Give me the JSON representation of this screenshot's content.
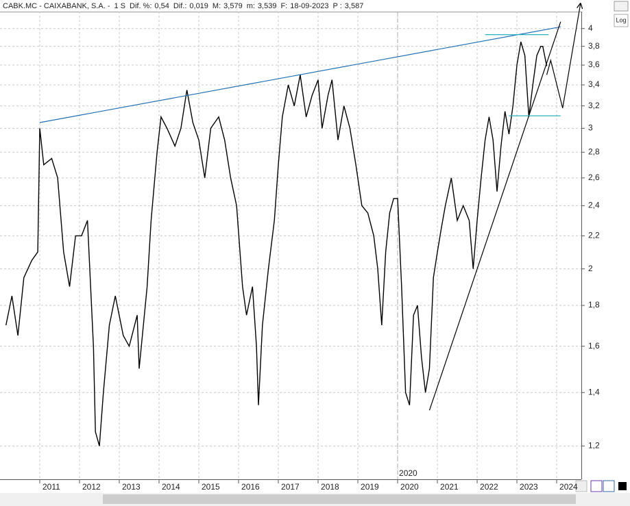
{
  "header": {
    "symbol": "CABK.MC - CAIXABANK, S.A. -",
    "period": "1 S",
    "fields": [
      {
        "label": "Dif. %:",
        "value": "0,54",
        "color": "#1a6fd0"
      },
      {
        "label": "Dif.:",
        "value": "0,019",
        "color": "#1a6fd0"
      },
      {
        "label": "M:",
        "value": "3,579",
        "color": "#222222"
      },
      {
        "label": "m:",
        "value": "3,539",
        "color": "#222222"
      },
      {
        "label": "F:",
        "value": "18-09-2023",
        "color": "#222222"
      },
      {
        "label": "P :",
        "value": "3,587",
        "color": "#e02020"
      }
    ]
  },
  "log_button": "Log",
  "chart_data": {
    "type": "line",
    "log": true,
    "grid": true,
    "xlim": [
      2010,
      2024.62
    ],
    "xticks": [
      2011,
      2012,
      2013,
      2014,
      2015,
      2016,
      2017,
      2018,
      2019,
      2020,
      2021,
      2022,
      2023,
      2024
    ],
    "ylim": [
      1.09,
      4.2
    ],
    "yticks": [
      {
        "value": 1.2,
        "label": "1,2"
      },
      {
        "value": 1.4,
        "label": "1,4"
      },
      {
        "value": 1.6,
        "label": "1,6"
      },
      {
        "value": 1.8,
        "label": "1,8"
      },
      2,
      {
        "value": 2.2,
        "label": "2,2"
      },
      {
        "value": 2.4,
        "label": "2,4"
      },
      {
        "value": 2.6,
        "label": "2,6"
      },
      {
        "value": 2.8,
        "label": "2,8"
      },
      3,
      {
        "value": 3.2,
        "label": "3,2"
      },
      {
        "value": 3.4,
        "label": "3,4"
      },
      {
        "value": 3.6,
        "label": "3,6"
      },
      {
        "value": 3.8,
        "label": "3,8"
      },
      4
    ],
    "marker": {
      "x": 2020,
      "label": "2020"
    },
    "series": [
      {
        "color": "#000000",
        "x": [
          2010.15,
          2010.3,
          2010.45,
          2010.6,
          2010.8,
          2010.95,
          2011.0,
          2011.1,
          2011.3,
          2011.45,
          2011.6,
          2011.75,
          2011.9,
          2012.05,
          2012.2,
          2012.35,
          2012.4,
          2012.5,
          2012.6,
          2012.75,
          2012.9,
          2013.1,
          2013.25,
          2013.45,
          2013.5,
          2013.7,
          2013.8,
          2013.95,
          2014.05,
          2014.2,
          2014.4,
          2014.55,
          2014.7,
          2014.85,
          2015.0,
          2015.15,
          2015.3,
          2015.5,
          2015.65,
          2015.8,
          2015.95,
          2016.1,
          2016.2,
          2016.35,
          2016.45,
          2016.5,
          2016.6,
          2016.75,
          2016.9,
          2017.0,
          2017.1,
          2017.25,
          2017.4,
          2017.55,
          2017.7,
          2017.85,
          2018.0,
          2018.1,
          2018.25,
          2018.35,
          2018.5,
          2018.65,
          2018.8,
          2018.95,
          2019.1,
          2019.25,
          2019.4,
          2019.5,
          2019.6,
          2019.7,
          2019.8,
          2019.9,
          2020.0,
          2020.1,
          2020.2,
          2020.3,
          2020.4,
          2020.5,
          2020.6,
          2020.7,
          2020.8,
          2020.9,
          2021.0,
          2021.1,
          2021.2,
          2021.35,
          2021.5,
          2021.65,
          2021.8,
          2021.9,
          2022.0,
          2022.1,
          2022.2,
          2022.3,
          2022.4,
          2022.5,
          2022.6,
          2022.7,
          2022.8,
          2022.9,
          2023.0,
          2023.1,
          2023.2,
          2023.3,
          2023.4,
          2023.5,
          2023.6,
          2023.65,
          2023.75
        ],
        "values": [
          1.7,
          1.85,
          1.65,
          1.95,
          2.05,
          2.1,
          3.0,
          2.7,
          2.75,
          2.6,
          2.1,
          1.9,
          2.2,
          2.2,
          2.3,
          1.6,
          1.25,
          1.2,
          1.4,
          1.7,
          1.85,
          1.65,
          1.6,
          1.75,
          1.5,
          1.9,
          2.3,
          2.8,
          3.1,
          3.0,
          2.85,
          3.0,
          3.35,
          3.05,
          2.9,
          2.6,
          3.0,
          3.1,
          2.9,
          2.6,
          2.4,
          1.9,
          1.75,
          1.9,
          1.6,
          1.35,
          1.7,
          2.0,
          2.3,
          2.7,
          3.1,
          3.4,
          3.2,
          3.5,
          3.1,
          3.3,
          3.45,
          3.0,
          3.3,
          3.45,
          2.9,
          3.2,
          3.0,
          2.7,
          2.4,
          2.35,
          2.2,
          2.0,
          1.7,
          2.1,
          2.35,
          2.45,
          2.45,
          1.9,
          1.4,
          1.35,
          1.75,
          1.8,
          1.55,
          1.4,
          1.5,
          1.95,
          2.1,
          2.25,
          2.4,
          2.6,
          2.3,
          2.4,
          2.3,
          2.0,
          2.3,
          2.6,
          2.9,
          3.1,
          2.9,
          2.5,
          2.85,
          3.15,
          2.95,
          3.2,
          3.6,
          3.85,
          3.7,
          3.1,
          3.4,
          3.7,
          3.8,
          3.8,
          3.59
        ]
      }
    ],
    "lines": [
      {
        "color": "#1f6fb5",
        "x": [
          2011.0,
          2024.1
        ],
        "y": [
          3.05,
          4.02
        ]
      },
      {
        "color": "#000000",
        "x": [
          2020.8,
          2024.1
        ],
        "y": [
          1.33,
          4.08
        ]
      },
      {
        "color": "#2ab0c0",
        "x": [
          2022.2,
          2023.8
        ],
        "y": [
          3.93,
          3.93
        ]
      },
      {
        "color": "#2ab0c0",
        "x": [
          2022.8,
          2024.1
        ],
        "y": [
          3.11,
          3.11
        ]
      },
      {
        "color": "#000000",
        "x": [
          2023.75,
          2023.85,
          2024.15,
          2024.6
        ],
        "y": [
          3.5,
          3.65,
          3.18,
          4.3
        ],
        "arrow": true
      }
    ]
  }
}
